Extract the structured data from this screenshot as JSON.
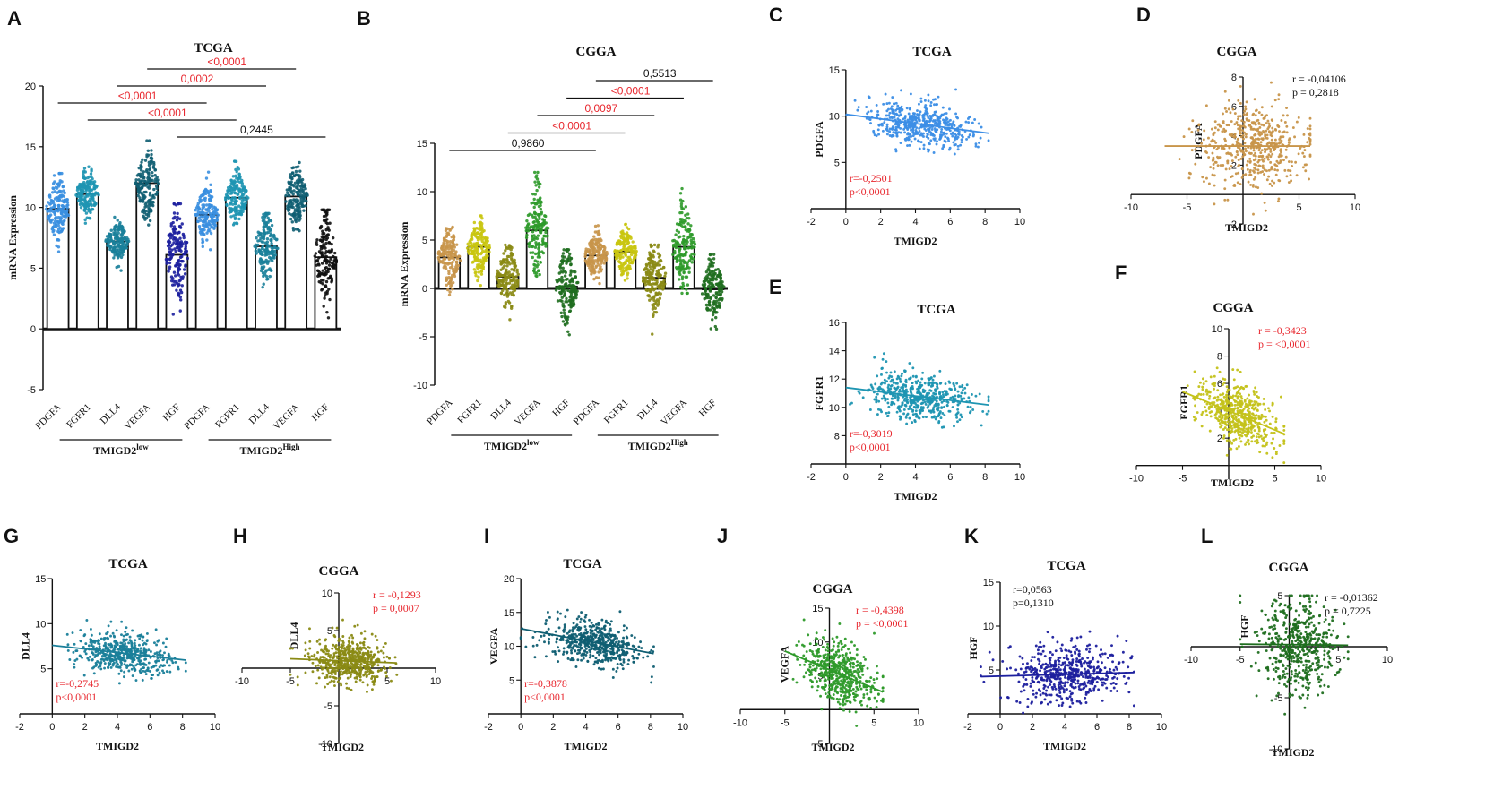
{
  "figure": {
    "panel_labels": [
      "A",
      "B",
      "C",
      "D",
      "E",
      "F",
      "G",
      "H",
      "I",
      "J",
      "K",
      "L"
    ],
    "axis_x_label": "TMIGD2",
    "group_word": "TMIGD2",
    "group_low": "low",
    "group_high": "High"
  },
  "chart_data": [
    {
      "panel": "A",
      "type": "bar",
      "title": "TCGA",
      "ylabel": "mRNA Expression",
      "ylim": [
        -5,
        20
      ],
      "yticks": [
        -5,
        0,
        5,
        10,
        15,
        20
      ],
      "categories": [
        "PDGFA",
        "FGFR1",
        "DLL4",
        "VEGFA",
        "HGF",
        "PDGFA",
        "FGFR1",
        "DLL4",
        "VEGFA",
        "HGF"
      ],
      "groups": [
        "low",
        "low",
        "low",
        "low",
        "low",
        "High",
        "High",
        "High",
        "High",
        "High"
      ],
      "values": [
        9.9,
        11.1,
        7.2,
        12.0,
        6.1,
        9.4,
        10.8,
        6.8,
        10.9,
        5.9
      ],
      "spread_min": [
        6.0,
        8.7,
        4.8,
        7.5,
        0.3,
        6.4,
        8.0,
        2.2,
        8.0,
        0.2
      ],
      "spread_max": [
        12.8,
        14.0,
        9.3,
        15.5,
        10.3,
        13.0,
        13.8,
        9.5,
        15.0,
        9.8
      ],
      "colors": [
        "#3a8fe0",
        "#1e95b2",
        "#1a7f9a",
        "#0f5e72",
        "#1c1f9e",
        "#3a8fe0",
        "#1e95b2",
        "#1a7f9a",
        "#0f5e72",
        "#111111"
      ],
      "comparisons": [
        {
          "from": 3,
          "to": 8,
          "label": "<0,0001",
          "color": "#e8262d"
        },
        {
          "from": 2,
          "to": 7,
          "label": "0,0002",
          "color": "#e8262d"
        },
        {
          "from": 0,
          "to": 5,
          "label": "<0,0001",
          "color": "#e8262d"
        },
        {
          "from": 1,
          "to": 6,
          "label": "<0,0001",
          "color": "#e8262d"
        },
        {
          "from": 4,
          "to": 9,
          "label": "0,2445",
          "color": "#111111"
        }
      ]
    },
    {
      "panel": "B",
      "type": "bar",
      "title": "CGGA",
      "ylabel": "mRNA Expression",
      "ylim": [
        -10,
        15
      ],
      "yticks": [
        -10,
        -5,
        0,
        5,
        10,
        15
      ],
      "categories": [
        "PDGFA",
        "FGFR1",
        "DLL4",
        "VEGFA",
        "HGF",
        "PDGFA",
        "FGFR1",
        "DLL4",
        "VEGFA",
        "HGF"
      ],
      "groups": [
        "low",
        "low",
        "low",
        "low",
        "low",
        "High",
        "High",
        "High",
        "High",
        "High"
      ],
      "values": [
        3.2,
        4.3,
        1.2,
        6.0,
        0.2,
        3.4,
        3.8,
        1.1,
        4.3,
        -0.1
      ],
      "spread_min": [
        -1.0,
        0.0,
        -3.8,
        0.0,
        -6.5,
        0.5,
        0.5,
        -4.8,
        -0.5,
        -5.5
      ],
      "spread_max": [
        6.5,
        7.5,
        4.5,
        12.0,
        4.0,
        6.5,
        6.8,
        4.5,
        11.5,
        3.8
      ],
      "colors": [
        "#c8954a",
        "#c9c50f",
        "#8a8a14",
        "#2e9a2a",
        "#1f6e1f",
        "#c8954a",
        "#c9c50f",
        "#8a8a14",
        "#2e9a2a",
        "#1f6e1f"
      ],
      "comparisons": [
        {
          "from": 5,
          "to": 9,
          "label": "0,5513",
          "color": "#111111"
        },
        {
          "from": 4,
          "to": 8,
          "label": "<0,0001",
          "color": "#e8262d"
        },
        {
          "from": 3,
          "to": 7,
          "label": "0,0097",
          "color": "#e8262d"
        },
        {
          "from": 2,
          "to": 6,
          "label": "<0,0001",
          "color": "#e8262d"
        },
        {
          "from": 0,
          "to": 5,
          "label": "0,9860",
          "color": "#111111"
        }
      ]
    },
    {
      "panel": "C",
      "type": "scatter",
      "title": "TCGA",
      "ylabel": "PDGFA",
      "xlim": [
        -2,
        10
      ],
      "xticks": [
        -2,
        0,
        2,
        4,
        6,
        8,
        10
      ],
      "ylim": [
        0,
        15
      ],
      "yticks": [
        5,
        10,
        15
      ],
      "axis_style": "left",
      "color": "#3c8ee6",
      "slope": -0.25,
      "intercept": 10.2,
      "x_range": [
        0,
        8.2
      ],
      "x_center": 4.2,
      "y_sd": 1.2,
      "n": 520,
      "r_text": "r=-0,2501",
      "p_text": "p<0,0001",
      "stat_color": "#e8262d",
      "stat_pos": "bottom-left"
    },
    {
      "panel": "D",
      "type": "scatter",
      "title": "CGGA",
      "ylabel": "PDGFA",
      "xlim": [
        -10,
        10
      ],
      "xticks": [
        -10,
        -5,
        5,
        10
      ],
      "ylim": [
        -2,
        8
      ],
      "yticks": [
        -2,
        2,
        4,
        6,
        8
      ],
      "axis_style": "cross",
      "color": "#c8954a",
      "slope": 0.0,
      "intercept": 3.3,
      "x_range": [
        -7,
        6
      ],
      "x_center": 1.0,
      "y_sd": 1.5,
      "n": 520,
      "r_text": "r = -0,04106",
      "p_text": "p = 0,2818",
      "stat_color": "#111111",
      "stat_pos": "top-right"
    },
    {
      "panel": "E",
      "type": "scatter",
      "title": "TCGA",
      "ylabel": "FGFR1",
      "xlim": [
        -2,
        10
      ],
      "xticks": [
        -2,
        0,
        2,
        4,
        6,
        8,
        10
      ],
      "ylim": [
        6,
        16
      ],
      "yticks": [
        8,
        10,
        12,
        14,
        16
      ],
      "axis_style": "left",
      "color": "#1e95b2",
      "slope": -0.15,
      "intercept": 11.4,
      "x_range": [
        0,
        8.2
      ],
      "x_center": 4.2,
      "y_sd": 0.85,
      "n": 520,
      "r_text": "r=-0,3019",
      "p_text": "p<0,0001",
      "stat_color": "#e8262d",
      "stat_pos": "bottom-left"
    },
    {
      "panel": "F",
      "type": "scatter",
      "title": "CGGA",
      "ylabel": "FGFR1",
      "xlim": [
        -10,
        10
      ],
      "xticks": [
        -10,
        -5,
        5,
        10
      ],
      "ylim": [
        -1,
        10
      ],
      "yticks": [
        2,
        4,
        6,
        8,
        10
      ],
      "axis_style": "cross",
      "color": "#c4c21a",
      "slope": -0.28,
      "intercept": 4.0,
      "x_range": [
        -5,
        6
      ],
      "x_center": 1.0,
      "y_sd": 1.1,
      "n": 520,
      "r_text": "r = -0,3423",
      "p_text": "p = <0,0001",
      "stat_color": "#e8262d",
      "stat_pos": "top-right"
    },
    {
      "panel": "G",
      "type": "scatter",
      "title": "TCGA",
      "ylabel": "DLL4",
      "xlim": [
        -2,
        10
      ],
      "xticks": [
        -2,
        0,
        2,
        4,
        6,
        8,
        10
      ],
      "ylim": [
        0,
        15
      ],
      "yticks": [
        5,
        10,
        15
      ],
      "axis_style": "left",
      "color": "#1a7f9a",
      "slope": -0.2,
      "intercept": 7.6,
      "x_range": [
        0,
        8.2
      ],
      "x_center": 4.5,
      "y_sd": 1.1,
      "n": 520,
      "r_text": "r=-0,2745",
      "p_text": "p<0,0001",
      "stat_color": "#e8262d",
      "stat_pos": "bottom-left"
    },
    {
      "panel": "H",
      "type": "scatter",
      "title": "CGGA",
      "ylabel": "DLL4",
      "xlim": [
        -10,
        10
      ],
      "xticks": [
        -10,
        -5,
        5,
        10
      ],
      "ylim": [
        -10,
        10
      ],
      "yticks": [
        -10,
        -5,
        5,
        10
      ],
      "axis_style": "cross",
      "color": "#8a8a14",
      "slope": -0.05,
      "intercept": 1.0,
      "x_range": [
        -5,
        6
      ],
      "x_center": 1.0,
      "y_sd": 1.6,
      "n": 520,
      "r_text": "r = -0,1293",
      "p_text": "p = 0,0007",
      "stat_color": "#e8262d",
      "stat_pos": "top-right"
    },
    {
      "panel": "I",
      "type": "scatter",
      "title": "TCGA",
      "ylabel": "VEGFA",
      "xlim": [
        -2,
        10
      ],
      "xticks": [
        -2,
        0,
        2,
        4,
        6,
        8,
        10
      ],
      "ylim": [
        0,
        20
      ],
      "yticks": [
        5,
        10,
        15,
        20
      ],
      "axis_style": "left",
      "color": "#0f5e72",
      "slope": -0.45,
      "intercept": 12.6,
      "x_range": [
        0,
        8.2
      ],
      "x_center": 4.5,
      "y_sd": 1.7,
      "n": 520,
      "r_text": "r=-0,3878",
      "p_text": "p<0,0001",
      "stat_color": "#e8262d",
      "stat_pos": "bottom-left"
    },
    {
      "panel": "J",
      "type": "scatter",
      "title": "CGGA",
      "ylabel": "VEGFA",
      "xlim": [
        -10,
        10
      ],
      "xticks": [
        -10,
        -5,
        5,
        10
      ],
      "ylim": [
        -5,
        15
      ],
      "yticks": [
        -5,
        5,
        10,
        15
      ],
      "axis_style": "cross",
      "color": "#2e9a2a",
      "slope": -0.55,
      "intercept": 5.9,
      "x_range": [
        -5,
        6
      ],
      "x_center": 1.0,
      "y_sd": 2.2,
      "n": 520,
      "r_text": "r = -0,4398",
      "p_text": "p = <0,0001",
      "stat_color": "#e8262d",
      "stat_pos": "top-right"
    },
    {
      "panel": "K",
      "type": "scatter",
      "title": "TCGA",
      "ylabel": "HGF",
      "xlim": [
        -2,
        10
      ],
      "xticks": [
        -2,
        0,
        2,
        4,
        6,
        8,
        10
      ],
      "ylim": [
        0,
        15
      ],
      "yticks": [
        5,
        10,
        15
      ],
      "axis_style": "left",
      "color": "#1c1f9e",
      "slope": 0.05,
      "intercept": 4.3,
      "x_range": [
        -1.2,
        8.3
      ],
      "x_center": 4.2,
      "y_sd": 1.6,
      "n": 520,
      "r_text": "r=0,0563",
      "p_text": "p=0,1310",
      "stat_color": "#111111",
      "stat_pos": "top-left"
    },
    {
      "panel": "L",
      "type": "scatter",
      "title": "CGGA",
      "ylabel": "HGF",
      "xlim": [
        -10,
        10
      ],
      "xticks": [
        -10,
        -5,
        5,
        10
      ],
      "ylim": [
        -10,
        5
      ],
      "yticks": [
        -10,
        -5,
        5
      ],
      "axis_style": "cross",
      "color": "#1f6e1f",
      "slope": -0.01,
      "intercept": 0.2,
      "x_range": [
        -5,
        6
      ],
      "x_center": 1.0,
      "y_sd": 2.3,
      "n": 520,
      "r_text": "r = -0,01362",
      "p_text": "p = 0,7225",
      "stat_color": "#111111",
      "stat_pos": "top-right"
    }
  ]
}
